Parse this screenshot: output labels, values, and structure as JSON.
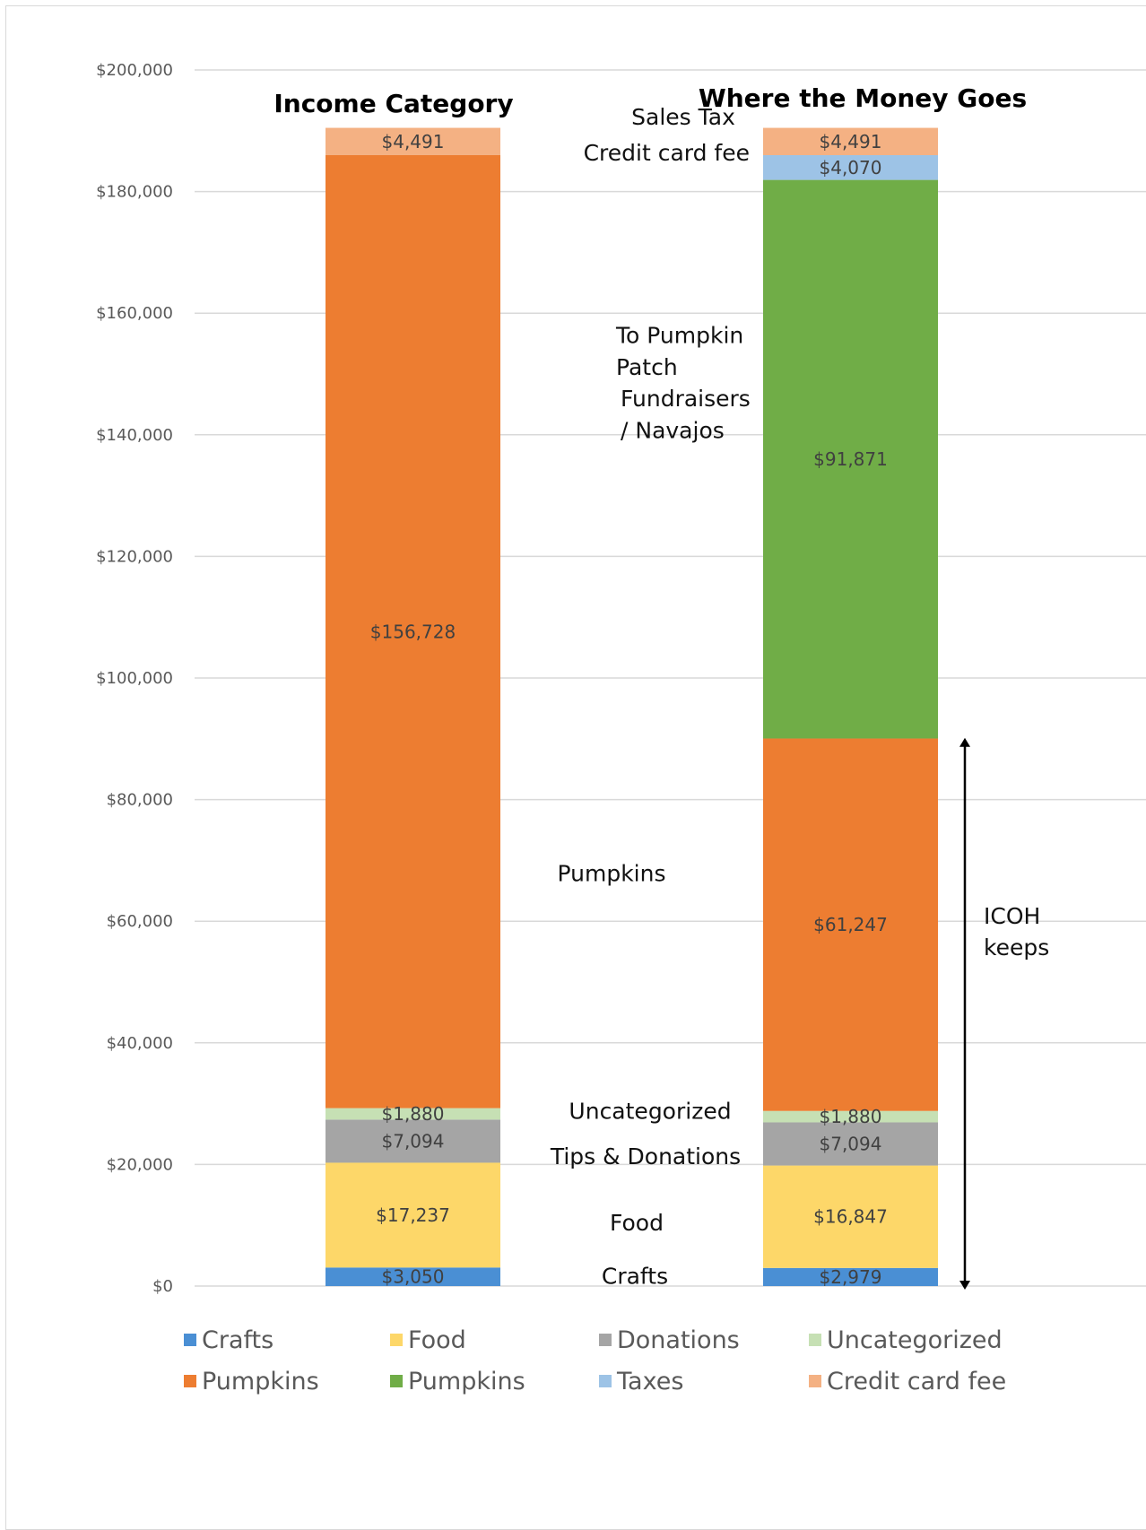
{
  "chart_data": {
    "type": "bar",
    "stacked": true,
    "categories": [
      "Income Category",
      "Where the Money Goes"
    ],
    "ylim": [
      0,
      200000
    ],
    "ytick_values": [
      0,
      20000,
      40000,
      60000,
      80000,
      100000,
      120000,
      140000,
      160000,
      180000,
      200000
    ],
    "ytick_labels": [
      "$0",
      "$20,000",
      "$40,000",
      "$60,000",
      "$80,000",
      "$100,000",
      "$120,000",
      "$140,000",
      "$160,000",
      "$180,000",
      "$200,000"
    ],
    "grid": true,
    "legend_position": "bottom",
    "series": [
      {
        "name": "Crafts",
        "color": "#4a8fd4",
        "values": [
          3050,
          2979
        ],
        "labels": [
          "$3,050",
          "$2,979"
        ]
      },
      {
        "name": "Food",
        "color": "#fdd769",
        "values": [
          17237,
          16847
        ],
        "labels": [
          "$17,237",
          "$16,847"
        ]
      },
      {
        "name": "Donations",
        "color": "#a5a5a5",
        "values": [
          7094,
          7094
        ],
        "labels": [
          "$7,094",
          "$7,094"
        ]
      },
      {
        "name": "Uncategorized",
        "color": "#c6e0b4",
        "values": [
          1880,
          1880
        ],
        "labels": [
          "$1,880",
          "$1,880"
        ]
      },
      {
        "name": "Pumpkins",
        "color": "#ed7d31",
        "values": [
          156728,
          61247
        ],
        "labels": [
          "$156,728",
          "$61,247"
        ]
      },
      {
        "name": "Pumpkins",
        "color": "#70ad47",
        "values": [
          0,
          91871
        ],
        "labels": [
          "",
          "$91,871"
        ]
      },
      {
        "name": "Taxes",
        "color": "#9dc3e6",
        "values": [
          0,
          4070
        ],
        "labels": [
          "",
          "$4,070"
        ]
      },
      {
        "name": "Credit card fee",
        "color": "#f4b183",
        "values": [
          4491,
          4491
        ],
        "labels": [
          "$4,491",
          "$4,491"
        ]
      }
    ],
    "annotations": [
      {
        "text": "Sales Tax",
        "value": 192300
      },
      {
        "text": "Credit card fee",
        "value": 186400
      },
      {
        "text": "To Pumpkin",
        "value": 156400
      },
      {
        "text": "Patch",
        "value": 151200
      },
      {
        "text": "Fundraisers",
        "value": 146000
      },
      {
        "text": "/ Navajos",
        "value": 140800
      },
      {
        "text": "Pumpkins",
        "value": 67900
      },
      {
        "text": "Uncategorized",
        "value": 28800
      },
      {
        "text": "Tips & Donations",
        "value": 21400
      },
      {
        "text": "Food",
        "value": 10500
      },
      {
        "text": "Crafts",
        "value": 1700
      }
    ],
    "bracket": {
      "label_lines": [
        "ICOH",
        "keeps"
      ],
      "from": 0,
      "to": 90157
    }
  }
}
